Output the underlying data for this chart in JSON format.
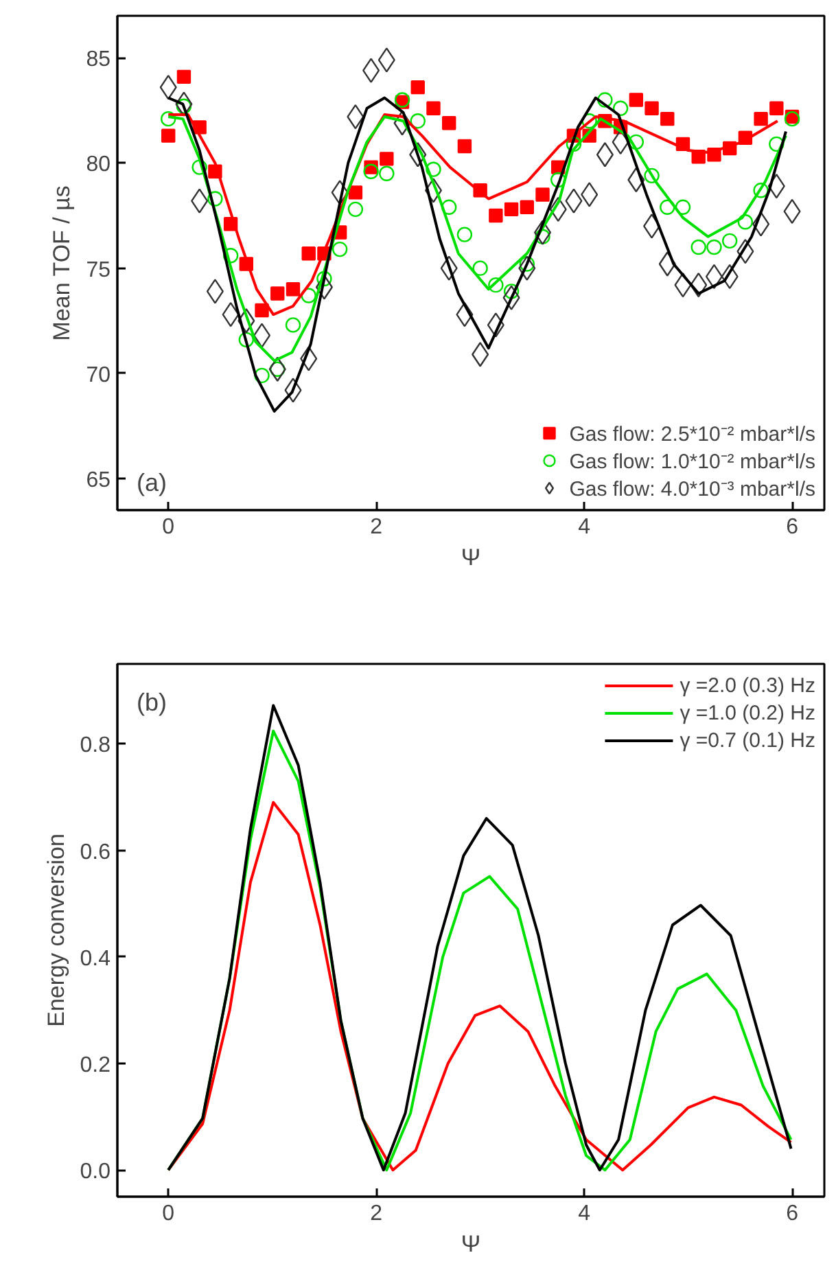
{
  "chart_data": [
    {
      "type": "scatter",
      "xlabel": "Ψ",
      "ylabel": "Mean TOF / µs",
      "annotations": [
        "(a)"
      ],
      "xlim": [
        -0.49,
        6.31
      ],
      "ylim": [
        63.5,
        87
      ],
      "xticks": [
        0,
        2,
        4,
        6
      ],
      "yticks": [
        65,
        70,
        75,
        80,
        85
      ],
      "grid": false,
      "legend": "bottom right",
      "x": [
        0,
        0.15,
        0.3,
        0.45,
        0.6,
        0.75,
        0.9,
        1.05,
        1.2,
        1.35,
        1.5,
        1.65,
        1.8,
        1.95,
        2.1,
        2.25,
        2.4,
        2.55,
        2.7,
        2.85,
        3.0,
        3.15,
        3.3,
        3.45,
        3.6,
        3.75,
        3.9,
        4.05,
        4.2,
        4.35,
        4.5,
        4.65,
        4.8,
        4.95,
        5.1,
        5.25,
        5.4,
        5.55,
        5.7,
        5.85,
        6.0
      ],
      "series": [
        {
          "name": "Gas flow: 2.5*10⁻² mbar*l/s",
          "color": "#ff0000",
          "marker": "square",
          "values": [
            81.3,
            84.1,
            81.7,
            79.6,
            77.1,
            75.2,
            73.0,
            73.8,
            74.0,
            75.7,
            75.7,
            76.7,
            78.6,
            79.8,
            80.2,
            82.9,
            83.6,
            82.6,
            81.9,
            80.8,
            78.7,
            77.5,
            77.8,
            77.9,
            78.5,
            79.8,
            81.3,
            81.3,
            82.0,
            81.7,
            83.0,
            82.6,
            82.1,
            80.9,
            80.3,
            80.4,
            80.7,
            81.2,
            82.1,
            82.6,
            82.2
          ]
        },
        {
          "name": "Gas flow: 1.0*10⁻² mbar*l/s",
          "color": "#00e000",
          "marker": "circle",
          "values": [
            82.1,
            82.7,
            79.8,
            78.3,
            75.6,
            71.6,
            69.9,
            70.2,
            72.3,
            73.7,
            74.5,
            75.9,
            77.8,
            79.6,
            79.5,
            83.0,
            82.0,
            79.7,
            77.9,
            76.6,
            75.0,
            74.2,
            73.9,
            75.2,
            76.5,
            79.2,
            80.9,
            82.0,
            83.0,
            82.6,
            81.0,
            79.4,
            77.9,
            77.9,
            76.0,
            76.0,
            76.3,
            77.2,
            78.7,
            80.9,
            82.1
          ]
        },
        {
          "name": "Gas flow: 4.0*10⁻³ mbar*l/s",
          "color": "#333333",
          "marker": "diamond",
          "values": [
            83.6,
            82.8,
            78.2,
            73.9,
            72.8,
            72.5,
            71.8,
            70.2,
            69.2,
            70.7,
            74.1,
            78.6,
            82.2,
            84.4,
            84.9,
            81.9,
            80.4,
            78.7,
            75.0,
            72.8,
            70.9,
            72.3,
            73.6,
            75.0,
            76.7,
            77.8,
            78.2,
            78.5,
            80.4,
            81.0,
            79.2,
            77.0,
            75.2,
            74.2,
            74.2,
            74.6,
            74.6,
            75.8,
            77.1,
            78.9,
            77.7
          ]
        },
        {
          "type": "line",
          "color": "#ff0000",
          "x": [
            0,
            0.19,
            0.45,
            0.68,
            0.85,
            1.01,
            1.2,
            1.38,
            1.55,
            1.73,
            1.91,
            2.08,
            2.26,
            2.44,
            2.71,
            3.08,
            3.45,
            3.76,
            4.11,
            4.38,
            4.69,
            5.0,
            5.21,
            5.52,
            5.86
          ],
          "values": [
            82.3,
            82.3,
            80.0,
            76.4,
            74.0,
            72.8,
            73.2,
            74.4,
            76.4,
            78.7,
            80.9,
            82.3,
            82.2,
            81.3,
            79.8,
            78.3,
            79.1,
            80.8,
            82.2,
            82.0,
            81.3,
            80.6,
            80.5,
            81.0,
            82.0
          ]
        },
        {
          "type": "line",
          "color": "#00e000",
          "x": [
            0,
            0.14,
            0.3,
            0.48,
            0.66,
            0.84,
            1.02,
            1.19,
            1.37,
            1.55,
            1.73,
            1.91,
            2.08,
            2.26,
            2.44,
            2.61,
            2.79,
            3.08,
            3.45,
            3.76,
            3.89,
            4.16,
            4.42,
            4.69,
            4.95,
            5.19,
            5.52,
            5.74,
            5.94
          ],
          "values": [
            82.2,
            82.1,
            80.2,
            77.2,
            74.0,
            71.5,
            70.6,
            71.0,
            72.7,
            75.7,
            78.7,
            81.0,
            82.2,
            82.0,
            80.4,
            78.3,
            75.7,
            74.0,
            75.7,
            78.2,
            80.6,
            82.1,
            81.3,
            79.1,
            77.4,
            76.5,
            77.4,
            79.1,
            81.3
          ]
        },
        {
          "type": "line",
          "color": "#000000",
          "x": [
            0,
            0.14,
            0.3,
            0.48,
            0.66,
            0.84,
            1.02,
            1.19,
            1.37,
            1.55,
            1.73,
            1.91,
            2.08,
            2.26,
            2.44,
            2.61,
            2.79,
            3.08,
            3.45,
            3.76,
            3.94,
            4.11,
            4.33,
            4.6,
            4.86,
            5.1,
            5.35,
            5.61,
            5.78,
            5.94
          ],
          "values": [
            83.1,
            82.8,
            80.6,
            77.0,
            73.1,
            69.9,
            68.2,
            69.1,
            71.4,
            75.7,
            80.0,
            82.6,
            83.1,
            82.4,
            79.8,
            76.4,
            73.8,
            71.2,
            75.2,
            79.1,
            81.7,
            83.1,
            82.3,
            78.5,
            75.2,
            73.8,
            74.4,
            76.5,
            78.7,
            81.5
          ]
        }
      ]
    },
    {
      "type": "line",
      "xlabel": "Ψ",
      "ylabel": "Energy conversion",
      "annotations": [
        "(b)"
      ],
      "xlim": [
        -0.49,
        6.31
      ],
      "ylim": [
        -0.05,
        0.95
      ],
      "xticks": [
        0,
        2,
        4,
        6
      ],
      "yticks": [
        {
          "value": 0,
          "label": "0.0"
        },
        0.2,
        0.4,
        0.6,
        0.8
      ],
      "grid": false,
      "legend": "top right",
      "series": [
        {
          "name": "γ =2.0 (0.3) Hz",
          "color": "#ff0000",
          "x": [
            0,
            0.33,
            0.59,
            0.79,
            1.01,
            1.25,
            1.46,
            1.66,
            1.87,
            2.16,
            2.38,
            2.69,
            2.95,
            3.19,
            3.46,
            3.72,
            4.02,
            4.37,
            4.64,
            5.0,
            5.25,
            5.51,
            5.77,
            5.99
          ],
          "values": [
            0,
            0.087,
            0.3,
            0.54,
            0.69,
            0.63,
            0.46,
            0.26,
            0.097,
            0,
            0.037,
            0.2,
            0.29,
            0.308,
            0.26,
            0.158,
            0.057,
            0,
            0.047,
            0.117,
            0.137,
            0.122,
            0.082,
            0.052
          ]
        },
        {
          "name": "γ =1.0 (0.2) Hz",
          "color": "#00e000",
          "x": [
            0,
            0.33,
            0.59,
            0.79,
            1.01,
            1.25,
            1.46,
            1.66,
            1.87,
            2.1,
            2.33,
            2.64,
            2.84,
            3.09,
            3.36,
            3.61,
            3.82,
            4.02,
            4.2,
            4.44,
            4.69,
            4.9,
            5.18,
            5.46,
            5.72,
            5.99
          ],
          "values": [
            0,
            0.097,
            0.36,
            0.62,
            0.824,
            0.73,
            0.53,
            0.28,
            0.097,
            0,
            0.107,
            0.4,
            0.52,
            0.551,
            0.49,
            0.3,
            0.14,
            0.027,
            0,
            0.057,
            0.26,
            0.34,
            0.368,
            0.3,
            0.158,
            0.057
          ]
        },
        {
          "name": "γ =0.7 (0.1) Hz",
          "color": "#000000",
          "x": [
            0,
            0.33,
            0.59,
            0.79,
            1.01,
            1.25,
            1.46,
            1.66,
            1.87,
            2.07,
            2.28,
            2.59,
            2.84,
            3.06,
            3.31,
            3.56,
            3.82,
            4.02,
            4.15,
            4.33,
            4.59,
            4.85,
            5.12,
            5.41,
            5.67,
            5.99
          ],
          "values": [
            0,
            0.097,
            0.36,
            0.64,
            0.872,
            0.76,
            0.54,
            0.28,
            0.097,
            0,
            0.107,
            0.42,
            0.59,
            0.66,
            0.61,
            0.44,
            0.2,
            0.047,
            0,
            0.057,
            0.3,
            0.46,
            0.497,
            0.44,
            0.26,
            0.04
          ]
        }
      ]
    }
  ]
}
